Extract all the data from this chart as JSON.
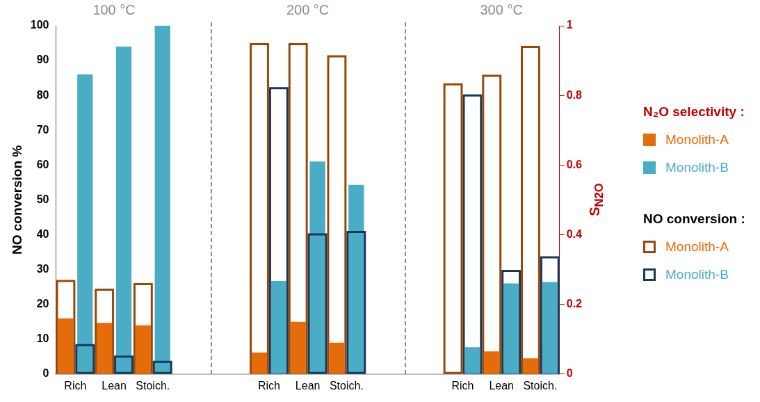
{
  "chart_data": {
    "type": "bar",
    "categories": [
      "Rich",
      "Lean",
      "Stoich.",
      null,
      null,
      "Rich",
      "Lean",
      "Stoich.",
      null,
      null,
      "Rich",
      "Lean",
      "Stoich."
    ],
    "series": [
      {
        "name": "Monolith-A",
        "color": "#e46c0a",
        "axis": "y2",
        "values": [
          0.16,
          0.147,
          0.14,
          null,
          null,
          0.062,
          0.15,
          0.09,
          null,
          null,
          0,
          0.065,
          0.045
        ]
      },
      {
        "name": "Monolith-B",
        "color": "#4bacc6",
        "axis": "y2",
        "values": [
          0.86,
          0.94,
          1.0,
          null,
          null,
          0.267,
          0.61,
          0.543,
          null,
          null,
          0.077,
          0.26,
          0.264
        ]
      },
      {
        "name": "Monolith-A",
        "color": "#984807",
        "axis": "y",
        "values": [
          27.0,
          24.5,
          26.1,
          null,
          null,
          95.0,
          95.0,
          91.5,
          null,
          null,
          83.5,
          85.9,
          94.2
        ]
      },
      {
        "name": "Monolith-B",
        "color": "#17375e",
        "axis": "y",
        "values": [
          8.6,
          5.3,
          3.8,
          null,
          null,
          82.4,
          40.4,
          41.1,
          null,
          null,
          80.3,
          29.9,
          33.8
        ]
      }
    ],
    "ylabel": "NO conversion %",
    "y2label": "S$_{N2O}$",
    "ylim": [
      0,
      100
    ],
    "yticks": [
      0,
      10,
      20,
      30,
      40,
      50,
      60,
      70,
      80,
      90,
      100
    ],
    "y2lim": [
      0,
      1
    ],
    "y2ticks": [
      0,
      0.2,
      0.4,
      0.6,
      0.8,
      1
    ],
    "legend": "right",
    "legend_title": "N₂O selectivity :",
    "annotations": [
      "100 °C",
      "200 °C",
      "300 °C",
      "NO conversion :"
    ],
    "grid": false
  }
}
